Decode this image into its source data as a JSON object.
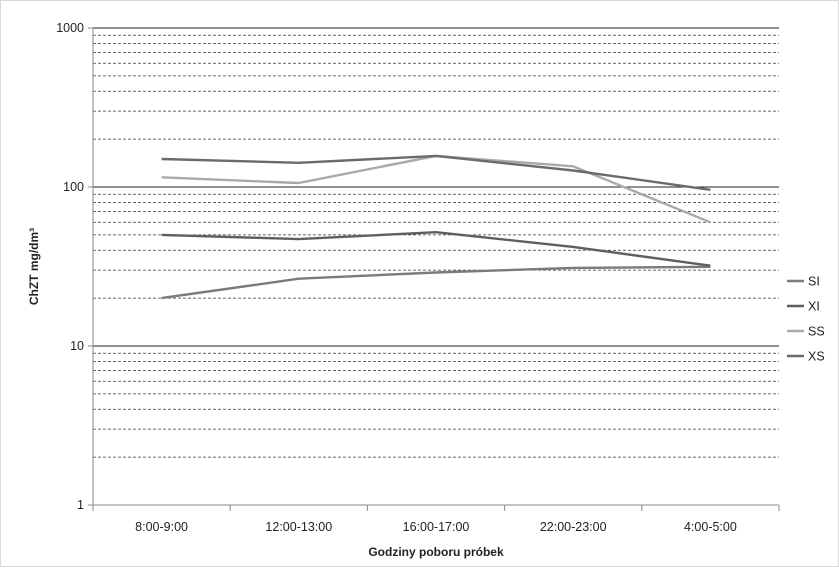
{
  "chart_data": {
    "type": "line",
    "title": "",
    "xlabel": "Godziny poboru próbek",
    "ylabel": "ChZT mg/dm³",
    "yscale": "log",
    "ylim": [
      1,
      1000
    ],
    "y_major_ticks": [
      "1",
      "10",
      "100",
      "1000"
    ],
    "y_major_values": [
      1,
      10,
      100,
      1000
    ],
    "grid": "major solid, minor dashed",
    "legend": "right",
    "categories": [
      "8:00-9:00",
      "12:00-13:00",
      "16:00-17:00",
      "22:00-23:00",
      "4:00-5:00"
    ],
    "series": [
      {
        "name": "SI",
        "color": "#7a7a7a",
        "values": [
          20,
          26.5,
          29,
          31,
          31.5
        ]
      },
      {
        "name": "XI",
        "color": "#5f5f5f",
        "values": [
          50,
          47,
          52,
          42,
          32
        ]
      },
      {
        "name": "SS",
        "color": "#a9a9a9",
        "values": [
          115,
          106,
          157,
          135,
          60
        ]
      },
      {
        "name": "XS",
        "color": "#6b6b6b",
        "values": [
          150,
          142,
          157,
          127,
          96
        ]
      }
    ]
  }
}
